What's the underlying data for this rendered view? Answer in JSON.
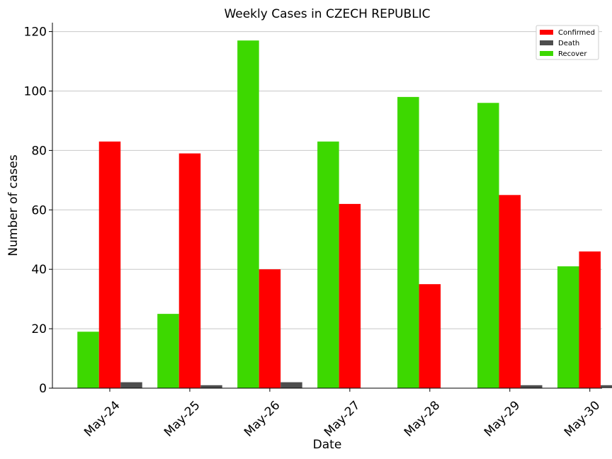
{
  "chart_data": {
    "type": "bar",
    "title": "Weekly Cases in CZECH REPUBLIC",
    "xlabel": "Date",
    "ylabel": "Number of cases",
    "categories": [
      "May-24",
      "May-25",
      "May-26",
      "May-27",
      "May-28",
      "May-29",
      "May-30"
    ],
    "ylim": [
      0,
      123
    ],
    "yticks": [
      0,
      20,
      40,
      60,
      80,
      100,
      120
    ],
    "grid": "horizontal",
    "legend_position": "top-right",
    "series": [
      {
        "name": "Recover",
        "color": "#3dd800",
        "values": [
          19,
          25,
          117,
          83,
          98,
          96,
          41
        ]
      },
      {
        "name": "Confirmed",
        "color": "#ff0000",
        "values": [
          83,
          79,
          40,
          62,
          35,
          65,
          46
        ]
      },
      {
        "name": "Death",
        "color": "#4d4d4d",
        "values": [
          2,
          1,
          2,
          0,
          0,
          1,
          1
        ]
      }
    ],
    "legend_order": [
      "Confirmed",
      "Death",
      "Recover"
    ]
  }
}
